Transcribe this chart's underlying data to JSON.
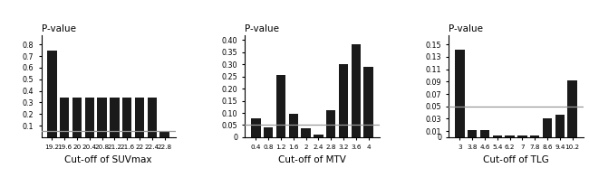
{
  "suv_categories": [
    "19.2",
    "19.6",
    "20",
    "20.4",
    "20.8",
    "21.2",
    "21.6",
    "22",
    "22.4",
    "22.8"
  ],
  "suv_values": [
    0.75,
    0.34,
    0.345,
    0.345,
    0.345,
    0.345,
    0.345,
    0.345,
    0.345,
    0.048
  ],
  "suv_xlabel": "Cut-off of SUVmax",
  "suv_ylim": [
    0,
    0.88
  ],
  "suv_yticks": [
    0.1,
    0.2,
    0.3,
    0.4,
    0.5,
    0.6,
    0.7,
    0.8
  ],
  "suv_yticklabels": [
    "0.1",
    "0.2",
    "0.3",
    "0.4",
    "0.5",
    "0.6",
    "0.7",
    "0.8"
  ],
  "mtv_categories": [
    "0.4",
    "0.8",
    "1.2",
    "1.6",
    "2",
    "2.4",
    "2.8",
    "3.2",
    "3.6",
    "4"
  ],
  "mtv_values": [
    0.078,
    0.042,
    0.258,
    0.098,
    0.035,
    0.012,
    0.113,
    0.302,
    0.383,
    0.29
  ],
  "mtv_xlabel": "Cut-off of MTV",
  "mtv_ylim": [
    0,
    0.42
  ],
  "mtv_yticks": [
    0.0,
    0.05,
    0.1,
    0.15,
    0.2,
    0.25,
    0.3,
    0.35,
    0.4
  ],
  "mtv_yticklabels": [
    "0",
    "0.05",
    "0.10",
    "0.15",
    "0.20",
    "0.25",
    "0.30",
    "0.35",
    "0.40"
  ],
  "tlg_categories": [
    "3",
    "3.8",
    "4.6",
    "5.4",
    "6.2",
    "7",
    "7.8",
    "8.6",
    "9.4",
    "10.2"
  ],
  "tlg_values": [
    0.142,
    0.011,
    0.011,
    0.003,
    0.003,
    0.003,
    0.003,
    0.031,
    0.036,
    0.092
  ],
  "tlg_xlabel": "Cut-off of TLG",
  "tlg_ylim": [
    0,
    0.165
  ],
  "tlg_yticks": [
    0.0,
    0.01,
    0.03,
    0.05,
    0.07,
    0.09,
    0.11,
    0.13,
    0.15
  ],
  "tlg_yticklabels": [
    "0",
    "0.01",
    "0.03",
    "0.05",
    "0.07",
    "0.09",
    "0.11",
    "0.13",
    "0.15"
  ],
  "ylabel": "P-value",
  "significance_line": 0.05,
  "bar_color": "#1a1a1a",
  "line_color": "#999999",
  "background_color": "#ffffff"
}
